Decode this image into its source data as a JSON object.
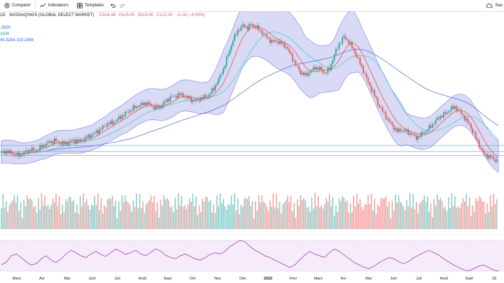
{
  "toolbar": {
    "compare_label": "Comparer",
    "indicators_label": "Indicateurs",
    "templates_label": "Templates",
    "save_label": "Sau"
  },
  "legend": {
    "interval": "1D",
    "symbol": "NASDAQ/NGS (GLOBAL SELECT MARKET)",
    "open": "O124.48",
    "high": "H125.00",
    "low": "B119.46",
    "close": "C122.20",
    "change": "−5.16 (−4.05%)",
    "ind1": ".2920",
    "ind2": "1638",
    "ind3": "45.3284  119.1956"
  },
  "xaxis": [
    {
      "label": "Mars",
      "bold": false
    },
    {
      "label": "Avr",
      "bold": false
    },
    {
      "label": "Mai",
      "bold": false
    },
    {
      "label": "Juin",
      "bold": false
    },
    {
      "label": "Juil",
      "bold": false
    },
    {
      "label": "Août",
      "bold": false
    },
    {
      "label": "Sept",
      "bold": false
    },
    {
      "label": "Oct",
      "bold": false
    },
    {
      "label": "Nov",
      "bold": false
    },
    {
      "label": "Déc",
      "bold": false
    },
    {
      "label": "2022",
      "bold": true
    },
    {
      "label": "Févr",
      "bold": false
    },
    {
      "label": "Mars",
      "bold": false
    },
    {
      "label": "Avr",
      "bold": false
    },
    {
      "label": "Mai",
      "bold": false
    },
    {
      "label": "Juin",
      "bold": false
    },
    {
      "label": "Juil",
      "bold": false
    },
    {
      "label": "Août",
      "bold": false
    },
    {
      "label": "Sept",
      "bold": false
    },
    {
      "label": "29",
      "bold": false
    }
  ],
  "colors": {
    "up": "#26a69a",
    "down": "#ef5350",
    "band_fill": "#b2b5ee",
    "band_line": "#7b7fe0",
    "ma_red": "#ef5350",
    "ma_teal": "#4dd0c8",
    "ma_blue": "#6c6fd8",
    "rsi": "#9c27b0",
    "hline": "#5aa0d0"
  },
  "chart_data": {
    "type": "candlestick",
    "price_series": [
      45,
      47,
      44,
      40,
      41,
      46,
      50,
      49,
      54,
      60,
      64,
      67,
      63,
      61,
      64,
      67,
      66,
      69,
      74,
      79,
      84,
      91,
      98,
      99,
      105,
      112,
      118,
      124,
      129,
      132,
      136,
      131,
      126,
      129,
      138,
      146,
      148,
      151,
      147,
      143,
      139,
      143,
      146,
      150,
      162,
      178,
      197,
      224,
      250,
      268,
      276,
      273,
      278,
      272,
      264,
      255,
      247,
      248,
      244,
      238,
      222,
      205,
      191,
      186,
      193,
      200,
      198,
      190,
      197,
      224,
      243,
      256,
      247,
      232,
      214,
      194,
      173,
      155,
      135,
      120,
      106,
      94,
      84,
      86,
      83,
      79,
      72,
      78,
      84,
      93,
      103,
      111,
      116,
      124,
      128,
      120,
      108,
      96,
      78,
      58,
      42,
      38,
      33,
      30
    ],
    "horizontal_levels": [
      40,
      47,
      58
    ],
    "bb_width": [
      22,
      22,
      22,
      22,
      20,
      20,
      20,
      20,
      20,
      22,
      22,
      22,
      22,
      22,
      22,
      22,
      24,
      24,
      24,
      24,
      26,
      26,
      26,
      28,
      28,
      28,
      30,
      30,
      30,
      30,
      30,
      30,
      30,
      30,
      30,
      30,
      30,
      30,
      30,
      30,
      30,
      30,
      30,
      30,
      40,
      50,
      60,
      60,
      60,
      60,
      60,
      60,
      60,
      60,
      60,
      60,
      60,
      60,
      60,
      60,
      60,
      60,
      60,
      55,
      55,
      50,
      45,
      45,
      45,
      50,
      60,
      60,
      60,
      60,
      50,
      45,
      45,
      45,
      45,
      45,
      45,
      45,
      45,
      40,
      30,
      30,
      30,
      30,
      30,
      30,
      30,
      30,
      30,
      30,
      30,
      30,
      30,
      30,
      30,
      30,
      30,
      30,
      30,
      30
    ],
    "rsi_series": [
      40,
      45,
      55,
      58,
      52,
      45,
      40,
      42,
      50,
      55,
      48,
      44,
      50,
      58,
      64,
      60,
      55,
      52,
      58,
      62,
      57,
      54,
      60,
      66,
      62,
      57,
      60,
      64,
      58,
      55,
      60,
      66,
      63,
      56,
      52,
      50,
      55,
      58,
      54,
      50,
      48,
      52,
      57,
      60,
      58,
      62,
      70,
      75,
      80,
      78,
      70,
      64,
      60,
      55,
      52,
      48,
      44,
      40,
      36,
      40,
      48,
      56,
      62,
      58,
      55,
      52,
      60,
      66,
      62,
      56,
      50,
      44,
      40,
      36,
      34,
      38,
      44,
      48,
      52,
      50,
      45,
      42,
      46,
      52,
      56,
      60,
      64,
      60,
      56,
      50,
      45,
      40,
      36,
      32,
      30,
      34,
      38,
      40,
      36,
      32,
      30
    ],
    "xlabels_bold": [
      "2022"
    ]
  }
}
